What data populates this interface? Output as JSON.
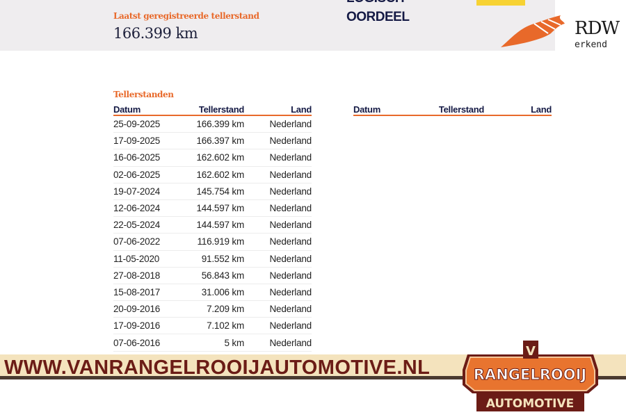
{
  "summary": {
    "last_reading_label": "Laatst geregistreerde tellerstand",
    "last_reading_value": "166.399 km"
  },
  "verdict": {
    "line1": "LOGISCH",
    "line2": "OORDEEL",
    "badge_color": "#f7d233"
  },
  "rdw": {
    "name": "RDW",
    "subtitle": "erkend",
    "accent": "#e8692a"
  },
  "table": {
    "title": "Tellerstanden",
    "columns": [
      "Datum",
      "Tellerstand",
      "Land"
    ],
    "rows": [
      [
        "25-09-2025",
        "166.399 km",
        "Nederland"
      ],
      [
        "17-09-2025",
        "166.397 km",
        "Nederland"
      ],
      [
        "16-06-2025",
        "162.602 km",
        "Nederland"
      ],
      [
        "02-06-2025",
        "162.602 km",
        "Nederland"
      ],
      [
        "19-07-2024",
        "145.754 km",
        "Nederland"
      ],
      [
        "12-06-2024",
        "144.597 km",
        "Nederland"
      ],
      [
        "22-05-2024",
        "144.597 km",
        "Nederland"
      ],
      [
        "07-06-2022",
        "116.919 km",
        "Nederland"
      ],
      [
        "11-05-2020",
        "91.552 km",
        "Nederland"
      ],
      [
        "27-08-2018",
        "56.843 km",
        "Nederland"
      ],
      [
        "15-08-2017",
        "31.006 km",
        "Nederland"
      ],
      [
        "20-09-2016",
        "7.209 km",
        "Nederland"
      ],
      [
        "17-09-2016",
        "7.102 km",
        "Nederland"
      ],
      [
        "07-06-2016",
        "5 km",
        "Nederland"
      ]
    ]
  },
  "table2": {
    "columns": [
      "Datum",
      "Tellerstand",
      "Land"
    ]
  },
  "banner": {
    "url": "WWW.VANRANGELROOIJAUTOMOTIVE.NL"
  },
  "logo": {
    "letter": "V",
    "name": "RANGELROOIJ",
    "sub": "AUTOMOTIVE"
  }
}
